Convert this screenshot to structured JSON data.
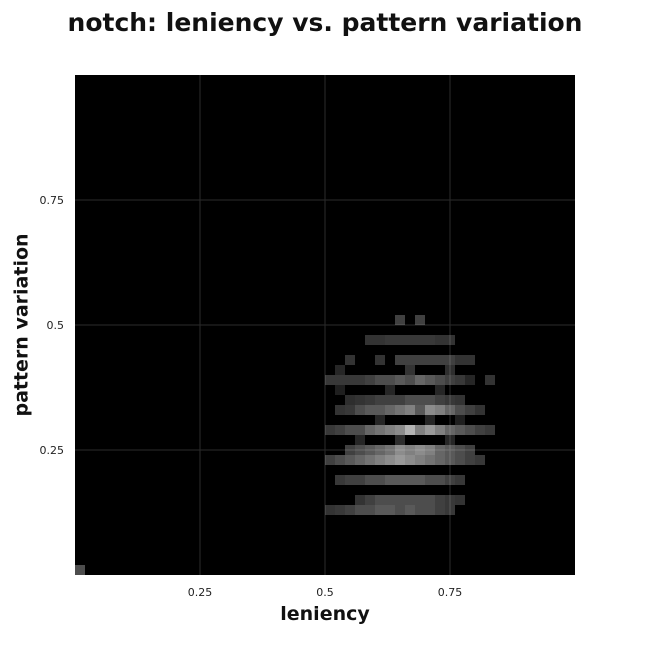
{
  "chart_data": {
    "type": "heatmap",
    "title": "notch: leniency vs. pattern variation",
    "xlabel": "leniency",
    "ylabel": "pattern variation",
    "xlim": [
      0,
      1
    ],
    "ylim": [
      0,
      1
    ],
    "x_ticks": [
      {
        "value": 0.25,
        "label": "0.25"
      },
      {
        "value": 0.5,
        "label": "0.5"
      },
      {
        "value": 0.75,
        "label": "0.75"
      }
    ],
    "y_ticks": [
      {
        "value": 0.25,
        "label": "0.25"
      },
      {
        "value": 0.5,
        "label": "0.5"
      },
      {
        "value": 0.75,
        "label": "0.75"
      }
    ],
    "grid": true,
    "background_color": "#000000",
    "cell_color": "#ffffff",
    "bins": 50,
    "bin_size": 0.02,
    "cells": [
      {
        "x": 0.0,
        "y": 0.0,
        "v": 0.3
      },
      {
        "x": 0.64,
        "y": 0.5,
        "v": 0.25
      },
      {
        "x": 0.68,
        "y": 0.5,
        "v": 0.25
      },
      {
        "x": 0.58,
        "y": 0.46,
        "v": 0.2
      },
      {
        "x": 0.6,
        "y": 0.46,
        "v": 0.2
      },
      {
        "x": 0.62,
        "y": 0.46,
        "v": 0.22
      },
      {
        "x": 0.64,
        "y": 0.46,
        "v": 0.22
      },
      {
        "x": 0.66,
        "y": 0.46,
        "v": 0.22
      },
      {
        "x": 0.68,
        "y": 0.46,
        "v": 0.22
      },
      {
        "x": 0.7,
        "y": 0.46,
        "v": 0.22
      },
      {
        "x": 0.72,
        "y": 0.46,
        "v": 0.2
      },
      {
        "x": 0.74,
        "y": 0.46,
        "v": 0.2
      },
      {
        "x": 0.54,
        "y": 0.42,
        "v": 0.2
      },
      {
        "x": 0.6,
        "y": 0.42,
        "v": 0.2
      },
      {
        "x": 0.64,
        "y": 0.42,
        "v": 0.25
      },
      {
        "x": 0.66,
        "y": 0.42,
        "v": 0.25
      },
      {
        "x": 0.68,
        "y": 0.42,
        "v": 0.25
      },
      {
        "x": 0.7,
        "y": 0.42,
        "v": 0.25
      },
      {
        "x": 0.72,
        "y": 0.42,
        "v": 0.25
      },
      {
        "x": 0.74,
        "y": 0.42,
        "v": 0.25
      },
      {
        "x": 0.76,
        "y": 0.42,
        "v": 0.2
      },
      {
        "x": 0.78,
        "y": 0.42,
        "v": 0.2
      },
      {
        "x": 0.52,
        "y": 0.4,
        "v": 0.15
      },
      {
        "x": 0.66,
        "y": 0.4,
        "v": 0.2
      },
      {
        "x": 0.74,
        "y": 0.4,
        "v": 0.18
      },
      {
        "x": 0.5,
        "y": 0.38,
        "v": 0.22
      },
      {
        "x": 0.52,
        "y": 0.38,
        "v": 0.22
      },
      {
        "x": 0.54,
        "y": 0.38,
        "v": 0.22
      },
      {
        "x": 0.56,
        "y": 0.38,
        "v": 0.22
      },
      {
        "x": 0.58,
        "y": 0.38,
        "v": 0.25
      },
      {
        "x": 0.6,
        "y": 0.38,
        "v": 0.3
      },
      {
        "x": 0.62,
        "y": 0.38,
        "v": 0.3
      },
      {
        "x": 0.64,
        "y": 0.38,
        "v": 0.35
      },
      {
        "x": 0.66,
        "y": 0.38,
        "v": 0.3
      },
      {
        "x": 0.68,
        "y": 0.38,
        "v": 0.4
      },
      {
        "x": 0.7,
        "y": 0.38,
        "v": 0.35
      },
      {
        "x": 0.72,
        "y": 0.38,
        "v": 0.3
      },
      {
        "x": 0.74,
        "y": 0.38,
        "v": 0.25
      },
      {
        "x": 0.76,
        "y": 0.38,
        "v": 0.22
      },
      {
        "x": 0.78,
        "y": 0.38,
        "v": 0.15
      },
      {
        "x": 0.82,
        "y": 0.38,
        "v": 0.2
      },
      {
        "x": 0.52,
        "y": 0.36,
        "v": 0.12
      },
      {
        "x": 0.62,
        "y": 0.36,
        "v": 0.15
      },
      {
        "x": 0.72,
        "y": 0.36,
        "v": 0.15
      },
      {
        "x": 0.54,
        "y": 0.34,
        "v": 0.18
      },
      {
        "x": 0.56,
        "y": 0.34,
        "v": 0.2
      },
      {
        "x": 0.58,
        "y": 0.34,
        "v": 0.22
      },
      {
        "x": 0.6,
        "y": 0.34,
        "v": 0.25
      },
      {
        "x": 0.62,
        "y": 0.34,
        "v": 0.25
      },
      {
        "x": 0.64,
        "y": 0.34,
        "v": 0.25
      },
      {
        "x": 0.66,
        "y": 0.34,
        "v": 0.3
      },
      {
        "x": 0.68,
        "y": 0.34,
        "v": 0.3
      },
      {
        "x": 0.7,
        "y": 0.34,
        "v": 0.3
      },
      {
        "x": 0.72,
        "y": 0.34,
        "v": 0.25
      },
      {
        "x": 0.74,
        "y": 0.34,
        "v": 0.22
      },
      {
        "x": 0.76,
        "y": 0.34,
        "v": 0.2
      },
      {
        "x": 0.52,
        "y": 0.32,
        "v": 0.2
      },
      {
        "x": 0.54,
        "y": 0.32,
        "v": 0.22
      },
      {
        "x": 0.56,
        "y": 0.32,
        "v": 0.3
      },
      {
        "x": 0.58,
        "y": 0.32,
        "v": 0.35
      },
      {
        "x": 0.6,
        "y": 0.32,
        "v": 0.35
      },
      {
        "x": 0.62,
        "y": 0.32,
        "v": 0.4
      },
      {
        "x": 0.64,
        "y": 0.32,
        "v": 0.45
      },
      {
        "x": 0.66,
        "y": 0.32,
        "v": 0.5
      },
      {
        "x": 0.68,
        "y": 0.32,
        "v": 0.35
      },
      {
        "x": 0.7,
        "y": 0.32,
        "v": 0.55
      },
      {
        "x": 0.72,
        "y": 0.32,
        "v": 0.5
      },
      {
        "x": 0.74,
        "y": 0.32,
        "v": 0.4
      },
      {
        "x": 0.76,
        "y": 0.32,
        "v": 0.3
      },
      {
        "x": 0.78,
        "y": 0.32,
        "v": 0.25
      },
      {
        "x": 0.8,
        "y": 0.32,
        "v": 0.2
      },
      {
        "x": 0.6,
        "y": 0.3,
        "v": 0.15
      },
      {
        "x": 0.7,
        "y": 0.3,
        "v": 0.15
      },
      {
        "x": 0.76,
        "y": 0.3,
        "v": 0.12
      },
      {
        "x": 0.5,
        "y": 0.28,
        "v": 0.22
      },
      {
        "x": 0.52,
        "y": 0.28,
        "v": 0.25
      },
      {
        "x": 0.54,
        "y": 0.28,
        "v": 0.3
      },
      {
        "x": 0.56,
        "y": 0.28,
        "v": 0.3
      },
      {
        "x": 0.58,
        "y": 0.28,
        "v": 0.4
      },
      {
        "x": 0.6,
        "y": 0.28,
        "v": 0.45
      },
      {
        "x": 0.62,
        "y": 0.28,
        "v": 0.5
      },
      {
        "x": 0.64,
        "y": 0.28,
        "v": 0.55
      },
      {
        "x": 0.66,
        "y": 0.28,
        "v": 0.7
      },
      {
        "x": 0.68,
        "y": 0.28,
        "v": 0.5
      },
      {
        "x": 0.7,
        "y": 0.28,
        "v": 0.6
      },
      {
        "x": 0.72,
        "y": 0.28,
        "v": 0.5
      },
      {
        "x": 0.74,
        "y": 0.28,
        "v": 0.4
      },
      {
        "x": 0.76,
        "y": 0.28,
        "v": 0.35
      },
      {
        "x": 0.78,
        "y": 0.28,
        "v": 0.3
      },
      {
        "x": 0.8,
        "y": 0.28,
        "v": 0.25
      },
      {
        "x": 0.82,
        "y": 0.28,
        "v": 0.22
      },
      {
        "x": 0.56,
        "y": 0.26,
        "v": 0.15
      },
      {
        "x": 0.64,
        "y": 0.26,
        "v": 0.18
      },
      {
        "x": 0.74,
        "y": 0.26,
        "v": 0.15
      },
      {
        "x": 0.54,
        "y": 0.24,
        "v": 0.25
      },
      {
        "x": 0.56,
        "y": 0.24,
        "v": 0.3
      },
      {
        "x": 0.58,
        "y": 0.24,
        "v": 0.35
      },
      {
        "x": 0.6,
        "y": 0.24,
        "v": 0.4
      },
      {
        "x": 0.62,
        "y": 0.24,
        "v": 0.45
      },
      {
        "x": 0.64,
        "y": 0.24,
        "v": 0.55
      },
      {
        "x": 0.66,
        "y": 0.24,
        "v": 0.5
      },
      {
        "x": 0.68,
        "y": 0.24,
        "v": 0.55
      },
      {
        "x": 0.7,
        "y": 0.24,
        "v": 0.5
      },
      {
        "x": 0.72,
        "y": 0.24,
        "v": 0.4
      },
      {
        "x": 0.74,
        "y": 0.24,
        "v": 0.35
      },
      {
        "x": 0.76,
        "y": 0.24,
        "v": 0.3
      },
      {
        "x": 0.78,
        "y": 0.24,
        "v": 0.25
      },
      {
        "x": 0.5,
        "y": 0.22,
        "v": 0.25
      },
      {
        "x": 0.52,
        "y": 0.22,
        "v": 0.3
      },
      {
        "x": 0.54,
        "y": 0.22,
        "v": 0.35
      },
      {
        "x": 0.56,
        "y": 0.22,
        "v": 0.4
      },
      {
        "x": 0.58,
        "y": 0.22,
        "v": 0.45
      },
      {
        "x": 0.6,
        "y": 0.22,
        "v": 0.5
      },
      {
        "x": 0.62,
        "y": 0.22,
        "v": 0.55
      },
      {
        "x": 0.64,
        "y": 0.22,
        "v": 0.6
      },
      {
        "x": 0.66,
        "y": 0.22,
        "v": 0.55
      },
      {
        "x": 0.68,
        "y": 0.22,
        "v": 0.5
      },
      {
        "x": 0.7,
        "y": 0.22,
        "v": 0.45
      },
      {
        "x": 0.72,
        "y": 0.22,
        "v": 0.4
      },
      {
        "x": 0.74,
        "y": 0.22,
        "v": 0.35
      },
      {
        "x": 0.76,
        "y": 0.22,
        "v": 0.3
      },
      {
        "x": 0.78,
        "y": 0.22,
        "v": 0.25
      },
      {
        "x": 0.8,
        "y": 0.22,
        "v": 0.22
      },
      {
        "x": 0.52,
        "y": 0.18,
        "v": 0.22
      },
      {
        "x": 0.54,
        "y": 0.18,
        "v": 0.25
      },
      {
        "x": 0.56,
        "y": 0.18,
        "v": 0.25
      },
      {
        "x": 0.58,
        "y": 0.18,
        "v": 0.3
      },
      {
        "x": 0.6,
        "y": 0.18,
        "v": 0.3
      },
      {
        "x": 0.62,
        "y": 0.18,
        "v": 0.35
      },
      {
        "x": 0.64,
        "y": 0.18,
        "v": 0.35
      },
      {
        "x": 0.66,
        "y": 0.18,
        "v": 0.35
      },
      {
        "x": 0.68,
        "y": 0.18,
        "v": 0.35
      },
      {
        "x": 0.7,
        "y": 0.18,
        "v": 0.3
      },
      {
        "x": 0.72,
        "y": 0.18,
        "v": 0.3
      },
      {
        "x": 0.74,
        "y": 0.18,
        "v": 0.25
      },
      {
        "x": 0.76,
        "y": 0.18,
        "v": 0.22
      },
      {
        "x": 0.56,
        "y": 0.14,
        "v": 0.2
      },
      {
        "x": 0.58,
        "y": 0.14,
        "v": 0.25
      },
      {
        "x": 0.6,
        "y": 0.14,
        "v": 0.3
      },
      {
        "x": 0.62,
        "y": 0.14,
        "v": 0.3
      },
      {
        "x": 0.64,
        "y": 0.14,
        "v": 0.3
      },
      {
        "x": 0.66,
        "y": 0.14,
        "v": 0.3
      },
      {
        "x": 0.68,
        "y": 0.14,
        "v": 0.3
      },
      {
        "x": 0.7,
        "y": 0.14,
        "v": 0.3
      },
      {
        "x": 0.72,
        "y": 0.14,
        "v": 0.25
      },
      {
        "x": 0.74,
        "y": 0.14,
        "v": 0.22
      },
      {
        "x": 0.76,
        "y": 0.14,
        "v": 0.2
      },
      {
        "x": 0.5,
        "y": 0.12,
        "v": 0.2
      },
      {
        "x": 0.52,
        "y": 0.12,
        "v": 0.22
      },
      {
        "x": 0.54,
        "y": 0.12,
        "v": 0.25
      },
      {
        "x": 0.56,
        "y": 0.12,
        "v": 0.3
      },
      {
        "x": 0.58,
        "y": 0.12,
        "v": 0.3
      },
      {
        "x": 0.6,
        "y": 0.12,
        "v": 0.35
      },
      {
        "x": 0.62,
        "y": 0.12,
        "v": 0.35
      },
      {
        "x": 0.64,
        "y": 0.12,
        "v": 0.3
      },
      {
        "x": 0.66,
        "y": 0.12,
        "v": 0.35
      },
      {
        "x": 0.68,
        "y": 0.12,
        "v": 0.3
      },
      {
        "x": 0.7,
        "y": 0.12,
        "v": 0.3
      },
      {
        "x": 0.72,
        "y": 0.12,
        "v": 0.25
      },
      {
        "x": 0.74,
        "y": 0.12,
        "v": 0.22
      }
    ]
  }
}
